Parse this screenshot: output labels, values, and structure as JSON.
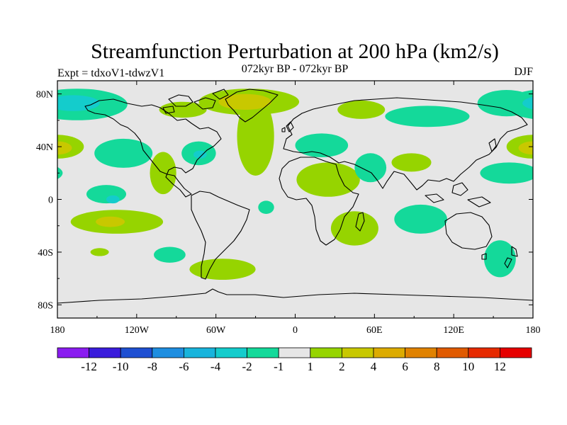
{
  "chart_data": {
    "type": "heatmap",
    "title": "Streamfunction Perturbation at 200 hPa (km2/s)",
    "subtitle": "072kyr BP - 072kyr BP",
    "left_label": "Expt = tdxoV1-tdwzV1",
    "right_label": "DJF",
    "xlabel": "",
    "ylabel": "",
    "x_ticks": [
      "180",
      "120W",
      "60W",
      "0",
      "60E",
      "120E",
      "180"
    ],
    "x_tick_values": [
      -180,
      -120,
      -60,
      0,
      60,
      120,
      180
    ],
    "y_ticks": [
      "80N",
      "40N",
      "0",
      "40S",
      "80S"
    ],
    "y_tick_values": [
      80,
      40,
      0,
      -40,
      -80
    ],
    "xlim": [
      -180,
      180
    ],
    "ylim": [
      -90,
      90
    ],
    "colorbar": {
      "labels": [
        "-12",
        "-10",
        "-8",
        "-6",
        "-4",
        "-2",
        "-1",
        "1",
        "2",
        "4",
        "6",
        "8",
        "10",
        "12"
      ],
      "colors": [
        "#8a1cf0",
        "#3a1cdc",
        "#1e4fd2",
        "#1e8ee0",
        "#18b4dc",
        "#14cccc",
        "#14d99a",
        "#e6e6e6",
        "#96d400",
        "#c8c800",
        "#dcab00",
        "#e08200",
        "#e05a00",
        "#e62a00",
        "#e60000"
      ]
    },
    "regions": [
      {
        "name": "north-pacific-west-positive",
        "lon": 180,
        "lat": 40,
        "rlon": 20,
        "rlat": 9,
        "level": 1
      },
      {
        "name": "north-pacific-west-core",
        "lon": 180,
        "lat": 39,
        "rlon": 11,
        "rlat": 5,
        "level": 2
      },
      {
        "name": "arctic-pacific-negative",
        "lon": -165,
        "lat": 72,
        "rlon": 38,
        "rlat": 12,
        "level": -1
      },
      {
        "name": "arctic-pacific-core",
        "lon": -168,
        "lat": 73,
        "rlon": 20,
        "rlat": 6,
        "level": -2
      },
      {
        "name": "north-pacific-east-negative",
        "lon": -130,
        "lat": 35,
        "rlon": 22,
        "rlat": 11,
        "level": -1
      },
      {
        "name": "central-pacific-negative-east",
        "lon": 162,
        "lat": 20,
        "rlon": 22,
        "rlat": 8,
        "level": -1
      },
      {
        "name": "east-pacific-tropical-negative",
        "lon": -143,
        "lat": 4,
        "rlon": 15,
        "rlat": 7,
        "level": -1
      },
      {
        "name": "east-pacific-tropical-core",
        "lon": -138,
        "lat": 0,
        "rlon": 5,
        "rlat": 3,
        "level": -2
      },
      {
        "name": "south-pacific-positive-band",
        "lon": -135,
        "lat": -17,
        "rlon": 35,
        "rlat": 9,
        "level": 1
      },
      {
        "name": "south-pacific-core",
        "lon": -140,
        "lat": -17,
        "rlon": 11,
        "rlat": 4,
        "level": 2
      },
      {
        "name": "south-pacific-small-positive",
        "lon": -148,
        "lat": -40,
        "rlon": 7,
        "rlat": 3,
        "level": 1
      },
      {
        "name": "southeast-pacific-negative",
        "lon": -95,
        "lat": -42,
        "rlon": 12,
        "rlat": 6,
        "level": -1
      },
      {
        "name": "north-atlantic-positive",
        "lon": -30,
        "lat": 48,
        "rlon": 14,
        "rlat": 30,
        "level": 1
      },
      {
        "name": "greenland-positive",
        "lon": -35,
        "lat": 74,
        "rlon": 38,
        "rlat": 10,
        "level": 1
      },
      {
        "name": "greenland-core",
        "lon": -38,
        "lat": 74,
        "rlon": 20,
        "rlat": 6,
        "level": 2
      },
      {
        "name": "north-america-negative",
        "lon": -73,
        "lat": 35,
        "rlon": 13,
        "rlat": 9,
        "level": -1
      },
      {
        "name": "north-america-core",
        "lon": -72,
        "lat": 34,
        "rlon": 5,
        "rlat": 3,
        "level": -2
      },
      {
        "name": "arctic-canada-positive",
        "lon": -85,
        "lat": 68,
        "rlon": 18,
        "rlat": 6,
        "level": 1
      },
      {
        "name": "east-pacific-subtropical-positive",
        "lon": -100,
        "lat": 20,
        "rlon": 10,
        "rlat": 16,
        "level": 1
      },
      {
        "name": "europe-negative",
        "lon": 20,
        "lat": 41,
        "rlon": 20,
        "rlat": 9,
        "level": -1
      },
      {
        "name": "north-africa-positive-band",
        "lon": 25,
        "lat": 15,
        "rlon": 24,
        "rlat": 13,
        "level": 1
      },
      {
        "name": "east-africa-positive",
        "lon": 45,
        "lat": -22,
        "rlon": 18,
        "rlat": 13,
        "level": 1
      },
      {
        "name": "tropical-atlantic-negative",
        "lon": -22,
        "lat": -6,
        "rlon": 6,
        "rlat": 5,
        "level": -1
      },
      {
        "name": "arabian-negative",
        "lon": 57,
        "lat": 24,
        "rlon": 12,
        "rlat": 11,
        "level": -1
      },
      {
        "name": "siberia-positive",
        "lon": 50,
        "lat": 68,
        "rlon": 18,
        "rlat": 7,
        "level": 1
      },
      {
        "name": "east-asia-negative-north",
        "lon": 100,
        "lat": 63,
        "rlon": 32,
        "rlat": 8,
        "level": -1
      },
      {
        "name": "bering-negative",
        "lon": 160,
        "lat": 73,
        "rlon": 22,
        "rlat": 10,
        "level": -1
      },
      {
        "name": "india-positive",
        "lon": 88,
        "lat": 28,
        "rlon": 15,
        "rlat": 7,
        "level": 1
      },
      {
        "name": "indian-ocean-negative",
        "lon": 95,
        "lat": -15,
        "rlon": 20,
        "rlat": 11,
        "level": -1
      },
      {
        "name": "southern-ocean-negative",
        "lon": 155,
        "lat": -45,
        "rlon": 12,
        "rlat": 14,
        "level": -1
      },
      {
        "name": "south-atlantic-positive",
        "lon": -55,
        "lat": -53,
        "rlon": 25,
        "rlat": 8,
        "level": 1
      }
    ]
  }
}
